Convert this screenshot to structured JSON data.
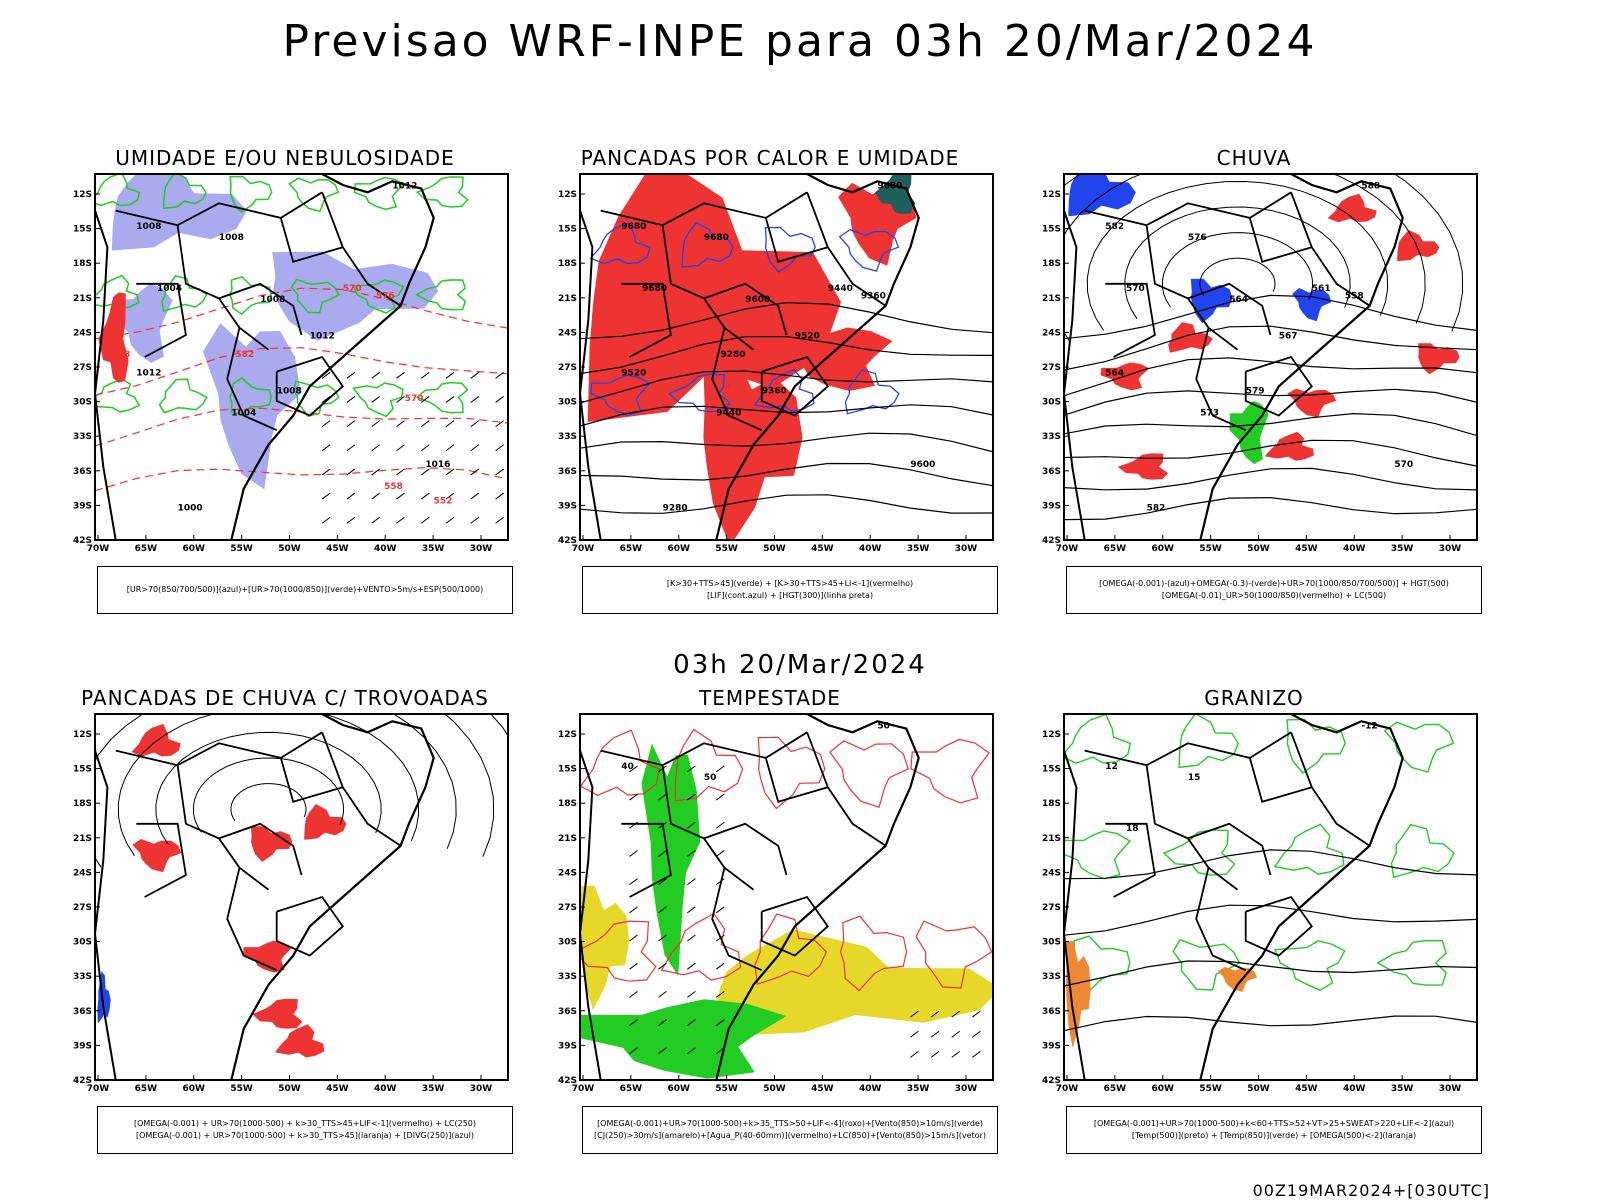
{
  "title": "Previsao WRF-INPE  para 03h 20/Mar/2024",
  "subtitle": "03h 20/Mar/2024",
  "footer": "00Z19MAR2024+[030UTC]",
  "lat_labels": [
    "12S",
    "15S",
    "18S",
    "21S",
    "24S",
    "27S",
    "30S",
    "33S",
    "36S",
    "39S",
    "42S"
  ],
  "lon_labels": [
    "70W",
    "65W",
    "60W",
    "55W",
    "50W",
    "45W",
    "40W",
    "35W",
    "30W"
  ],
  "colors": {
    "green": "#22cc22",
    "red": "#ee3333",
    "blue": "#2244ee",
    "lavender": "#aaaaee",
    "yellow": "#e6d82a",
    "orange": "#ee8833",
    "black": "#000000",
    "darkteal": "#1f5f5a"
  },
  "panels": [
    {
      "title": "UMIDADE E/OU NEBULOSIDADE",
      "legend": [
        "[UR>70(850/700/500)](azul)+[UR>70(1000/850)](verde)+VENTO>5m/s+ESP(500/1000)"
      ],
      "labels": [
        "1012",
        "1008",
        "1008",
        "1004",
        "1008",
        "1012",
        "1004",
        "1008",
        "1000",
        "1016",
        "1012",
        "570",
        "576",
        "582",
        "570",
        "558",
        "552",
        "588"
      ]
    },
    {
      "title": "PANCADAS POR CALOR E UMIDADE",
      "legend": [
        "[K>30+TTS>45](verde) + [K>30+TTS>45+LI<-1](vermelho)",
        "[LIF](cont.azul) + [HGT(300)](linha preta)"
      ],
      "labels": [
        "9680",
        "9680",
        "9680",
        "9680",
        "9600",
        "9520",
        "9440",
        "9360",
        "9280",
        "9600",
        "9520",
        "9440",
        "9360",
        "9280"
      ]
    },
    {
      "title": "CHUVA",
      "legend": [
        "[OMEGA(-0.001)-(azul)+OMEGA(-0.3)-(verde)+UR>70(1000/850/700/500)] + HGT(500)",
        "[OMEGA(-0.01)_UR>50(1000/850)(vermelho) + LC(500)"
      ],
      "labels": [
        "588",
        "582",
        "576",
        "570",
        "564",
        "567",
        "573",
        "579",
        "582",
        "570",
        "564",
        "561",
        "558"
      ]
    },
    {
      "title": "PANCADAS DE CHUVA C/ TROVOADAS",
      "legend": [
        "[OMEGA(-0.001) + UR>70(1000-500) + k>30_TTS>45+LIF<-1](vermelho) + LC(250)",
        "[OMEGA(-0.001) + UR>70(1000-500) + k>30_TTS>45](laranja) + [DIVG(250)](azul)"
      ],
      "labels": []
    },
    {
      "title": "TEMPESTADE",
      "legend": [
        "[OMEGA(-0.001)+UR>70(1000-500)+k>35_TTS>50+LIF<-4](roxo)+[Vento(850)>10m/s](verde)",
        "[CJ(250)>30m/s](amarelo)+[Agua_P(40-60mm)](vermelho)+LC(850)+[Vento(850)>15m/s](vetor)"
      ],
      "labels": [
        "50",
        "40",
        "50"
      ]
    },
    {
      "title": "GRANIZO",
      "legend": [
        "[OMEGA(-0.001)+UR>70(1000-500)+k<60+TTS>52+VT>25+SWEAT>220+LIF<-2](azul)",
        "[Temp(500)](preto) + [Temp(850)](verde) + [OMEGA(500)<-2](laranja)"
      ],
      "labels": [
        "-12",
        "12",
        "15",
        "18"
      ]
    }
  ]
}
